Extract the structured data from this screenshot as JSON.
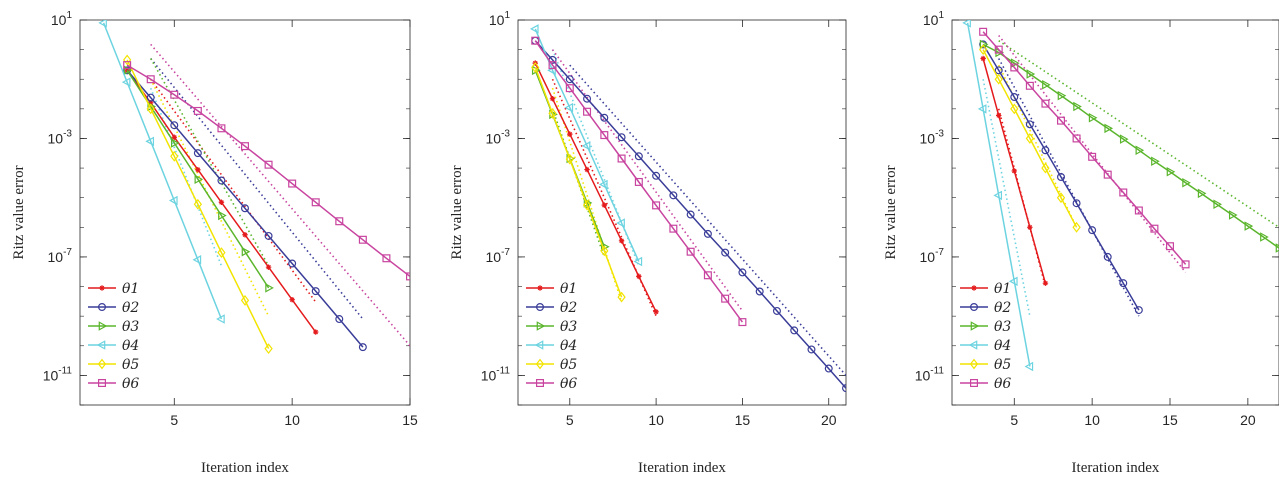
{
  "chart_data": [
    {
      "type": "line",
      "xlabel": "Iteration index",
      "ylabel": "Ritz value error",
      "yscale": "log",
      "xlim": [
        1,
        15
      ],
      "ylim": [
        1e-12,
        10
      ],
      "xticks": [
        5,
        10,
        15
      ],
      "yticks": [
        {
          "value": 10,
          "base": "10",
          "exp": "1"
        },
        {
          "value": 0.001,
          "base": "10",
          "exp": "-3"
        },
        {
          "value": 1e-07,
          "base": "10",
          "exp": "-7"
        },
        {
          "value": 1e-11,
          "base": "10",
          "exp": "-11"
        }
      ],
      "legend": "bottom-left",
      "series": [
        {
          "name": "θ1",
          "color": "#e41a1c",
          "marker": "star",
          "x": [
            3,
            4,
            5,
            6,
            7,
            8,
            9,
            10,
            11
          ],
          "y": [
            0.2,
            0.016,
            0.0011,
            8.8e-05,
            7e-06,
            5.6e-07,
            4.5e-08,
            3.6e-09,
            2.9e-10
          ]
        },
        {
          "name": "θ2",
          "color": "#3a3d98",
          "marker": "circle",
          "x": [
            3,
            4,
            5,
            6,
            7,
            8,
            9,
            10,
            11,
            12,
            13
          ],
          "y": [
            0.2,
            0.024,
            0.0028,
            0.00032,
            3.8e-05,
            4.4e-06,
            5.1e-07,
            6e-08,
            7e-09,
            8e-10,
            9e-11
          ]
        },
        {
          "name": "θ3",
          "color": "#5ab52c",
          "marker": "triangle-right",
          "x": [
            3,
            4,
            5,
            6,
            7,
            8,
            9
          ],
          "y": [
            0.2,
            0.012,
            0.0007,
            4.2e-05,
            2.5e-06,
            1.5e-07,
            9e-09
          ]
        },
        {
          "name": "θ4",
          "color": "#6cd3e0",
          "marker": "triangle-left",
          "x": [
            2,
            3,
            4,
            5,
            6,
            7
          ],
          "y": [
            8,
            0.08,
            0.0008,
            8e-06,
            8e-08,
            8e-10
          ]
        },
        {
          "name": "θ5",
          "color": "#f2e400",
          "marker": "diamond",
          "x": [
            3,
            4,
            5,
            6,
            7,
            8,
            9
          ],
          "y": [
            0.45,
            0.01,
            0.00025,
            6e-06,
            1.4e-07,
            3.4e-09,
            8e-11
          ]
        },
        {
          "name": "θ6",
          "color": "#c8449f",
          "marker": "square",
          "x": [
            3,
            4,
            5,
            6,
            7,
            8,
            9,
            10,
            11,
            12,
            13,
            14,
            15
          ],
          "y": [
            0.3,
            0.1,
            0.03,
            0.0085,
            0.0022,
            0.00055,
            0.00013,
            3e-05,
            7e-06,
            1.6e-06,
            3.8e-07,
            9e-08,
            2.2e-08
          ]
        }
      ],
      "bounds": [
        {
          "color": "#e41a1c",
          "x": [
            4,
            11
          ],
          "y": [
            0.1,
            3e-09
          ]
        },
        {
          "color": "#3a3d98",
          "x": [
            4,
            13
          ],
          "y": [
            0.5,
            8e-10
          ]
        },
        {
          "color": "#5ab52c",
          "x": [
            4,
            9
          ],
          "y": [
            0.5,
            5e-08
          ]
        },
        {
          "color": "#6cd3e0",
          "x": [
            4,
            7
          ],
          "y": [
            0.05,
            5e-08
          ]
        },
        {
          "color": "#f2e400",
          "x": [
            4,
            9
          ],
          "y": [
            0.1,
            1e-09
          ]
        },
        {
          "color": "#c8449f",
          "x": [
            4,
            15
          ],
          "y": [
            1.5,
            1e-10
          ]
        }
      ]
    },
    {
      "type": "line",
      "xlabel": "Iteration index",
      "ylabel": "Ritz value error",
      "yscale": "log",
      "xlim": [
        2,
        21
      ],
      "ylim": [
        1e-12,
        10
      ],
      "xticks": [
        5,
        10,
        15,
        20
      ],
      "yticks": [
        {
          "value": 10,
          "base": "10",
          "exp": "1"
        },
        {
          "value": 0.001,
          "base": "10",
          "exp": "-3"
        },
        {
          "value": 1e-07,
          "base": "10",
          "exp": "-7"
        },
        {
          "value": 1e-11,
          "base": "10",
          "exp": "-11"
        }
      ],
      "legend": "bottom-left",
      "series": [
        {
          "name": "θ1",
          "color": "#e41a1c",
          "marker": "star",
          "x": [
            3,
            4,
            5,
            6,
            7,
            8,
            9,
            10
          ],
          "y": [
            0.35,
            0.022,
            0.0014,
            8.9e-05,
            5.6e-06,
            3.5e-07,
            2.2e-08,
            1.4e-09
          ]
        },
        {
          "name": "θ2",
          "color": "#3a3d98",
          "marker": "circle",
          "x": [
            3,
            4,
            5,
            6,
            7,
            8,
            9,
            10,
            11,
            12,
            13,
            14,
            15,
            16,
            17,
            18,
            19,
            20,
            21
          ],
          "y": [
            2,
            0.45,
            0.1,
            0.022,
            0.005,
            0.0011,
            0.00025,
            5.5e-05,
            1.2e-05,
            2.7e-06,
            6e-07,
            1.4e-07,
            3e-08,
            6.8e-09,
            1.5e-09,
            3.3e-10,
            7.5e-11,
            1.7e-11,
            3.7e-12
          ]
        },
        {
          "name": "θ3",
          "color": "#5ab52c",
          "marker": "triangle-right",
          "x": [
            3,
            4,
            5,
            6,
            7
          ],
          "y": [
            0.2,
            0.0065,
            0.00021,
            6.7e-06,
            2.2e-07
          ]
        },
        {
          "name": "θ4",
          "color": "#6cd3e0",
          "marker": "triangle-left",
          "x": [
            3,
            4,
            5,
            6,
            7,
            8,
            9
          ],
          "y": [
            5,
            0.2,
            0.011,
            0.00056,
            2.8e-05,
            1.4e-06,
            7e-08
          ]
        },
        {
          "name": "θ5",
          "color": "#f2e400",
          "marker": "diamond",
          "x": [
            3,
            4,
            5,
            6,
            7,
            8
          ],
          "y": [
            0.25,
            0.007,
            0.0002,
            5.6e-06,
            1.6e-07,
            4.4e-09
          ]
        },
        {
          "name": "θ6",
          "color": "#c8449f",
          "marker": "square",
          "x": [
            3,
            4,
            5,
            6,
            7,
            8,
            9,
            10,
            11,
            12,
            13,
            14,
            15
          ],
          "y": [
            2,
            0.3,
            0.05,
            0.008,
            0.0013,
            0.00021,
            3.4e-05,
            5.5e-06,
            9e-07,
            1.5e-07,
            2.4e-08,
            3.9e-09,
            6.3e-10
          ]
        }
      ],
      "bounds": [
        {
          "color": "#e41a1c",
          "x": [
            4,
            10
          ],
          "y": [
            0.1,
            1e-09
          ]
        },
        {
          "color": "#3a3d98",
          "x": [
            5,
            21
          ],
          "y": [
            0.3,
            1e-11
          ]
        },
        {
          "color": "#5ab52c",
          "x": [
            4,
            7
          ],
          "y": [
            0.01,
            1e-07
          ]
        },
        {
          "color": "#6cd3e0",
          "x": [
            4,
            9
          ],
          "y": [
            1,
            5e-08
          ]
        },
        {
          "color": "#f2e400",
          "x": [
            4,
            8
          ],
          "y": [
            0.05,
            3e-09
          ]
        },
        {
          "color": "#c8449f",
          "x": [
            4,
            15
          ],
          "y": [
            1,
            1.5e-09
          ]
        }
      ]
    },
    {
      "type": "line",
      "xlabel": "Iteration index",
      "ylabel": "Ritz value error",
      "yscale": "log",
      "xlim": [
        1,
        22
      ],
      "ylim": [
        1e-12,
        10
      ],
      "xticks": [
        5,
        10,
        15,
        20
      ],
      "yticks": [
        {
          "value": 10,
          "base": "10",
          "exp": "1"
        },
        {
          "value": 0.001,
          "base": "10",
          "exp": "-3"
        },
        {
          "value": 1e-07,
          "base": "10",
          "exp": "-7"
        },
        {
          "value": 1e-11,
          "base": "10",
          "exp": "-11"
        }
      ],
      "legend": "bottom-left",
      "series": [
        {
          "name": "θ1",
          "color": "#e41a1c",
          "marker": "star",
          "x": [
            3,
            4,
            5,
            6,
            7
          ],
          "y": [
            0.5,
            0.006,
            8e-05,
            1e-06,
            1.3e-08
          ]
        },
        {
          "name": "θ2",
          "color": "#3a3d98",
          "marker": "circle",
          "x": [
            3,
            4,
            5,
            6,
            7,
            8,
            9,
            10,
            11,
            12,
            13
          ],
          "y": [
            1.5,
            0.2,
            0.025,
            0.003,
            0.0004,
            5e-05,
            6.5e-06,
            8e-07,
            1e-07,
            1.3e-08,
            1.6e-09
          ]
        },
        {
          "name": "θ3",
          "color": "#5ab52c",
          "marker": "triangle-right",
          "x": [
            3,
            4,
            5,
            6,
            7,
            8,
            9,
            10,
            11,
            12,
            13,
            14,
            15,
            16,
            17,
            18,
            19,
            20,
            21,
            22
          ],
          "y": [
            1.5,
            0.8,
            0.35,
            0.15,
            0.065,
            0.028,
            0.012,
            0.005,
            0.0022,
            0.00095,
            0.0004,
            0.00017,
            7.5e-05,
            3.2e-05,
            1.4e-05,
            6e-06,
            2.6e-06,
            1.1e-06,
            4.7e-07,
            2e-07
          ]
        },
        {
          "name": "θ4",
          "color": "#6cd3e0",
          "marker": "triangle-left",
          "x": [
            2,
            3,
            4,
            5,
            6
          ],
          "y": [
            8,
            0.01,
            1.2e-05,
            1.5e-08,
            2e-11
          ]
        },
        {
          "name": "θ5",
          "color": "#f2e400",
          "marker": "diamond",
          "x": [
            3,
            4,
            5,
            6,
            7,
            8,
            9
          ],
          "y": [
            1,
            0.1,
            0.01,
            0.001,
            0.0001,
            1e-05,
            1e-06
          ]
        },
        {
          "name": "θ6",
          "color": "#c8449f",
          "marker": "square",
          "x": [
            3,
            4,
            5,
            6,
            7,
            8,
            9,
            10,
            11,
            12,
            13,
            14,
            15,
            16
          ],
          "y": [
            4,
            1,
            0.25,
            0.06,
            0.015,
            0.004,
            0.001,
            0.00024,
            6e-05,
            1.5e-05,
            3.7e-06,
            9e-07,
            2.3e-07,
            5.6e-08
          ]
        }
      ],
      "bounds": [
        {
          "color": "#e41a1c",
          "x": [
            4,
            7
          ],
          "y": [
            0.01,
            1e-08
          ]
        },
        {
          "color": "#3a3d98",
          "x": [
            4,
            13
          ],
          "y": [
            0.5,
            1e-09
          ]
        },
        {
          "color": "#5ab52c",
          "x": [
            4,
            22
          ],
          "y": [
            2,
            1e-06
          ]
        },
        {
          "color": "#6cd3e0",
          "x": [
            3,
            6
          ],
          "y": [
            0.1,
            1e-09
          ]
        },
        {
          "color": "#f2e400",
          "x": [
            4,
            9
          ],
          "y": [
            0.3,
            1e-06
          ]
        },
        {
          "color": "#c8449f",
          "x": [
            4,
            16
          ],
          "y": [
            3,
            3e-08
          ]
        }
      ]
    }
  ]
}
